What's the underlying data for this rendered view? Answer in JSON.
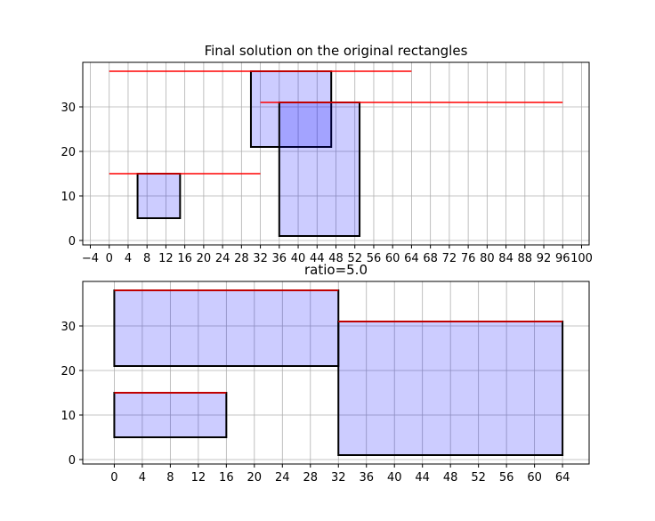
{
  "chart_data": [
    {
      "type": "rectangles",
      "title": "Final solution on the original rectangles",
      "xlabel": "",
      "ylabel": "",
      "xlim": [
        -5.6,
        101.6
      ],
      "ylim": [
        -1,
        40
      ],
      "xticks": [
        -4,
        0,
        4,
        8,
        12,
        16,
        20,
        24,
        28,
        32,
        36,
        40,
        44,
        48,
        52,
        56,
        60,
        64,
        68,
        72,
        76,
        80,
        84,
        88,
        92,
        96,
        100
      ],
      "yticks": [
        0,
        10,
        20,
        30
      ],
      "grid": true,
      "rectangles": [
        {
          "x0": 6,
          "x1": 15,
          "y0": 5,
          "y1": 15
        },
        {
          "x0": 30,
          "x1": 47,
          "y0": 21,
          "y1": 38
        },
        {
          "x0": 36,
          "x1": 53,
          "y0": 1,
          "y1": 31
        }
      ],
      "red_lines": [
        {
          "x0": 0,
          "x1": 64,
          "y": 38
        },
        {
          "x0": 32,
          "x1": 96,
          "y": 31
        },
        {
          "x0": 0,
          "x1": 32,
          "y": 15
        }
      ]
    },
    {
      "type": "rectangles",
      "title": "ratio=5.0",
      "xlabel": "",
      "ylabel": "",
      "xlim": [
        -4.5,
        67.8
      ],
      "ylim": [
        -1,
        40
      ],
      "xticks": [
        0,
        4,
        8,
        12,
        16,
        20,
        24,
        28,
        32,
        36,
        40,
        44,
        48,
        52,
        56,
        60,
        64
      ],
      "yticks": [
        0,
        10,
        20,
        30
      ],
      "grid": true,
      "rectangles": [
        {
          "x0": 0,
          "x1": 32,
          "y0": 21,
          "y1": 38
        },
        {
          "x0": 0,
          "x1": 16,
          "y0": 5,
          "y1": 15
        },
        {
          "x0": 32,
          "x1": 64,
          "y0": 1,
          "y1": 31
        }
      ],
      "red_lines": [
        {
          "x0": 0,
          "x1": 32,
          "y": 38
        },
        {
          "x0": 32,
          "x1": 64,
          "y": 31
        },
        {
          "x0": 0,
          "x1": 16,
          "y": 15
        }
      ]
    }
  ],
  "colors": {
    "rect_fill": "#0000ff",
    "rect_fill_opacity": 0.2,
    "rect_edge": "#000000",
    "red_line": "#ff0000",
    "grid": "#b0b0b0",
    "axes": "#000000"
  }
}
